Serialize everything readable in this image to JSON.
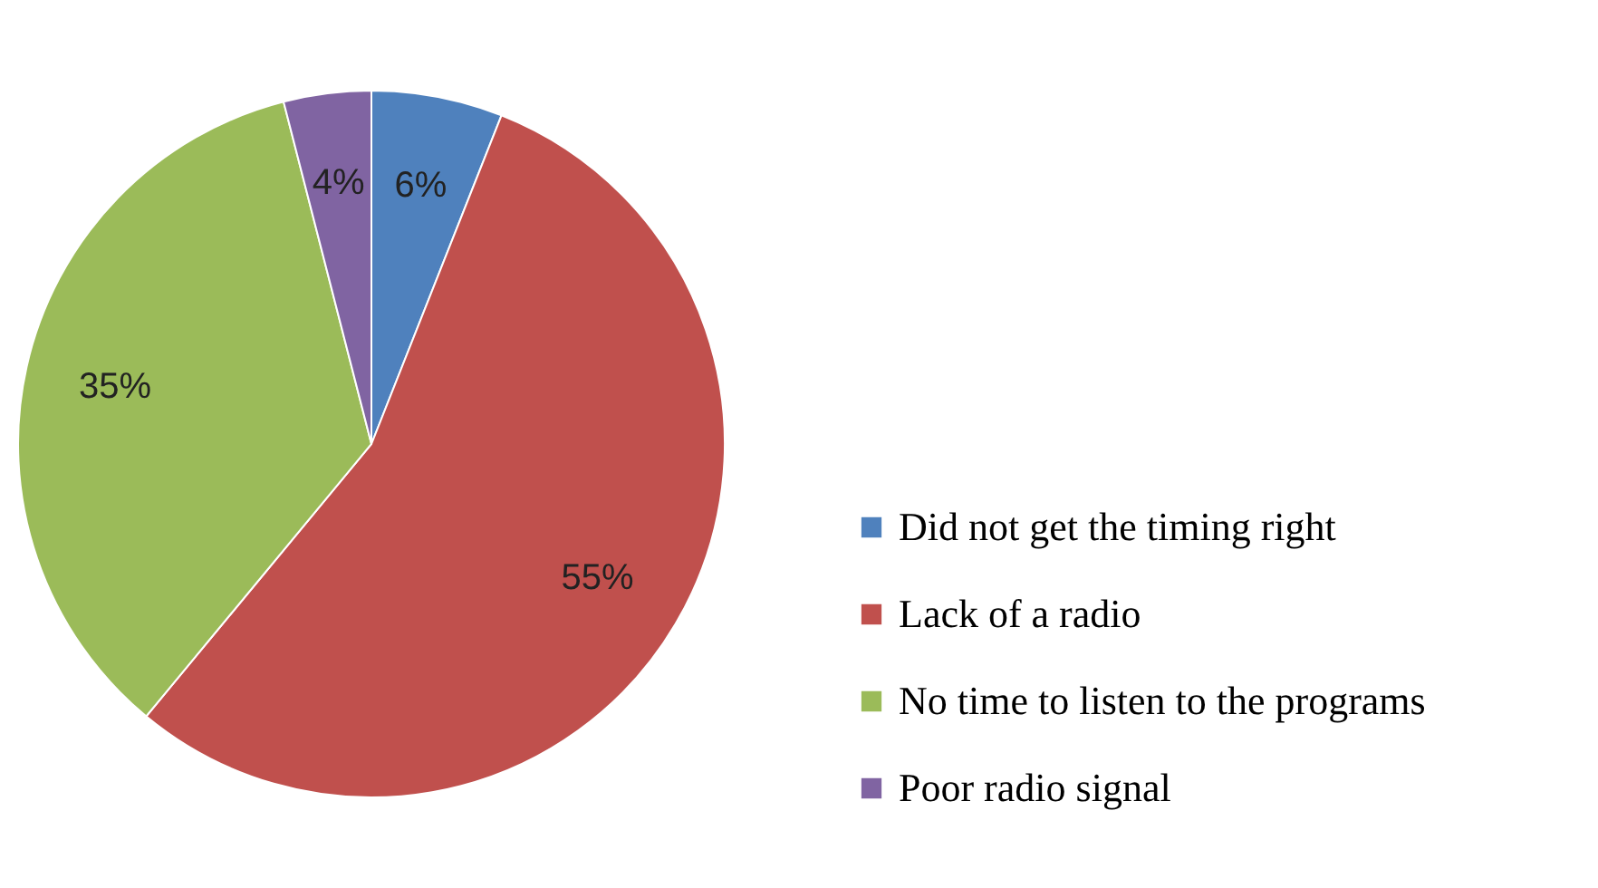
{
  "chart_data": {
    "type": "pie",
    "categories": [
      "Did not get the timing right",
      "Lack of a radio",
      "No time to listen to the programs",
      "Poor radio signal"
    ],
    "values": [
      6,
      55,
      35,
      4
    ],
    "colors": [
      "#4f81bd",
      "#c0504d",
      "#9bbb59",
      "#8064a2"
    ],
    "value_labels": [
      "6%",
      "55%",
      "35%",
      "4%"
    ],
    "legend": "right"
  }
}
